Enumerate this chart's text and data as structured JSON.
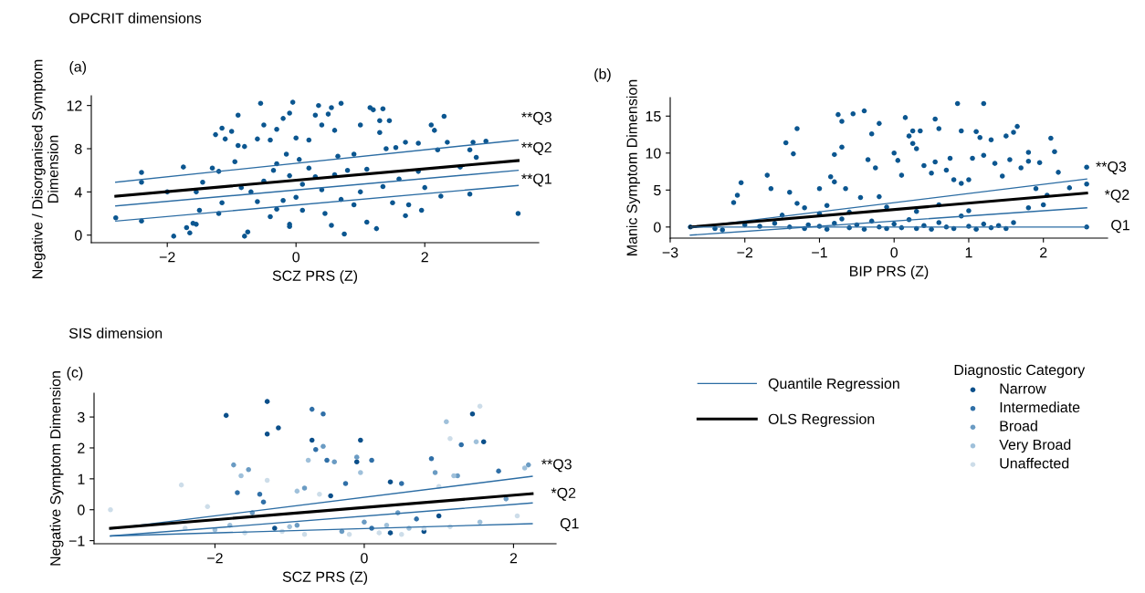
{
  "chart_data": [
    {
      "type": "scatter",
      "title": "(a)",
      "xlabel": "SCZ PRS (Z)",
      "ylabel": "Negative / Disorganised Symptom\nDimension",
      "xlim": [
        -3.18,
        3.77
      ],
      "ylim": [
        -0.7,
        12.9
      ],
      "xticks": [
        {
          "value": -2,
          "label": "−2"
        },
        0,
        2
      ],
      "yticks": [
        0,
        4,
        8,
        12
      ],
      "annotations": [
        "OPCRIT dimensions",
        "**Q3",
        "**Q2",
        "**Q1"
      ],
      "series": [
        {
          "marker": "circle",
          "color": "#0b5690",
          "x": [
            -2.8,
            -2.4,
            -2.4,
            -2.4,
            -2.0,
            -1.9,
            -1.75,
            -1.7,
            -1.6,
            -1.65,
            -1.55,
            -1.55,
            -1.5,
            -1.45,
            -1.3,
            -1.2,
            -1.25,
            -1.15,
            -1.1,
            -1.2,
            -1.15,
            -1.0,
            -0.9,
            -0.9,
            -0.8,
            -0.95,
            -0.85,
            -0.7,
            -0.8,
            -0.75,
            -0.6,
            -0.6,
            -0.55,
            -0.5,
            -0.4,
            -0.35,
            -0.3,
            -0.2,
            -0.1,
            -0.05,
            -0.15,
            -0.1,
            -0.2,
            -0.1,
            -0.1,
            -0.3,
            -0.4,
            0.0,
            0.05,
            0.1,
            0.1,
            0.2,
            0.3,
            0.35,
            0.4,
            0.5,
            0.55,
            0.6,
            0.65,
            0.7,
            0.75,
            0.7,
            0.55,
            0.3,
            0.4,
            0.45,
            0.8,
            0.9,
            1.0,
            1.1,
            1.15,
            1.2,
            1.3,
            1.3,
            1.35,
            1.45,
            1.35,
            1.25,
            1.1,
            1.4,
            1.5,
            1.55,
            1.7,
            1.7,
            1.75,
            1.9,
            1.9,
            1.95,
            2.0,
            2.1,
            2.15,
            2.2,
            2.25,
            2.3,
            2.35,
            2.55,
            2.7,
            2.7,
            2.75,
            2.8,
            2.95,
            3.45,
            0.2,
            0.6,
            -0.5,
            1.0,
            0.0,
            -0.3,
            0.9,
            1.6
          ],
          "values": [
            1.6,
            5.8,
            4.9,
            1.3,
            4.0,
            -0.1,
            6.3,
            0.7,
            1.1,
            0.2,
            1.0,
            4.0,
            2.3,
            4.9,
            6.2,
            5.9,
            9.3,
            9.9,
            8.9,
            2.0,
            3.0,
            9.6,
            11.1,
            8.3,
            8.2,
            6.8,
            4.4,
            4.0,
            -0.1,
            0.3,
            3.1,
            8.9,
            12.2,
            10.2,
            8.8,
            6.0,
            9.8,
            10.8,
            11.3,
            12.3,
            7.5,
            5.5,
            3.2,
            1.0,
            0.8,
            2.4,
            1.7,
            9.0,
            7.0,
            4.7,
            2.3,
            8.8,
            11.1,
            12.0,
            10.2,
            11.2,
            11.8,
            9.7,
            7.3,
            12.2,
            0.1,
            3.3,
            0.9,
            5.4,
            4.2,
            2.0,
            6.0,
            2.8,
            10.2,
            6.1,
            11.8,
            11.6,
            9.5,
            10.6,
            11.7,
            10.6,
            4.5,
            0.6,
            1.2,
            8.0,
            3.0,
            8.1,
            8.6,
            1.8,
            2.8,
            8.5,
            5.9,
            2.3,
            4.4,
            10.2,
            9.7,
            7.9,
            3.6,
            11.0,
            8.6,
            6.3,
            7.9,
            3.8,
            8.6,
            7.2,
            8.7,
            2.0,
            6.2,
            5.6,
            5.0,
            4.0,
            3.5,
            6.6,
            7.5,
            5.2
          ]
        },
        {
          "type": "line",
          "color": "#2b6ca3",
          "x": [
            -2.8,
            3.45
          ],
          "values": [
            4.9,
            8.8
          ]
        },
        {
          "type": "line",
          "color": "#000000",
          "x": [
            -2.8,
            3.45
          ],
          "values": [
            3.6,
            6.9
          ]
        },
        {
          "type": "line",
          "color": "#2b6ca3",
          "x": [
            -2.8,
            3.45
          ],
          "values": [
            2.7,
            6.0
          ]
        },
        {
          "type": "line",
          "color": "#2b6ca3",
          "x": [
            -2.8,
            3.45
          ],
          "values": [
            1.3,
            4.6
          ]
        }
      ]
    },
    {
      "type": "scatter",
      "title": "(b)",
      "xlabel": "BIP PRS (Z)",
      "ylabel": "Manic Symptom Dimension",
      "xlim": [
        -3,
        2.86
      ],
      "ylim": [
        -1.5,
        17.5
      ],
      "xticks": [
        {
          "value": -3,
          "label": "−3"
        },
        {
          "value": -2,
          "label": "−2"
        },
        {
          "value": -1,
          "label": "−1"
        },
        0,
        1,
        2
      ],
      "yticks": [
        0,
        5,
        10,
        15
      ],
      "annotations": [
        "**Q3",
        "*Q2",
        "Q1"
      ],
      "series": [
        {
          "marker": "circle",
          "color": "#0b5690",
          "x": [
            -2.73,
            -2.4,
            -2.3,
            -2.15,
            -2.1,
            -2.05,
            -2.0,
            -1.8,
            -1.7,
            -1.65,
            -1.6,
            -1.5,
            -1.45,
            -1.4,
            -1.35,
            -1.3,
            -1.3,
            -1.2,
            -1.15,
            -1.0,
            -1.0,
            -0.9,
            -0.85,
            -0.8,
            -0.8,
            -0.75,
            -0.7,
            -0.7,
            -0.65,
            -0.6,
            -0.55,
            -0.45,
            -0.4,
            -0.35,
            -0.3,
            -0.25,
            -0.2,
            -0.2,
            -0.1,
            0.0,
            0.05,
            0.1,
            0.15,
            0.2,
            0.25,
            0.3,
            0.25,
            0.35,
            0.4,
            0.5,
            0.55,
            0.6,
            0.55,
            0.7,
            0.75,
            0.8,
            0.85,
            0.9,
            0.9,
            1.0,
            1.05,
            1.1,
            1.15,
            1.2,
            1.2,
            1.3,
            1.35,
            1.45,
            1.5,
            1.55,
            1.6,
            1.65,
            1.7,
            1.8,
            1.8,
            1.9,
            1.95,
            2.05,
            2.1,
            2.15,
            2.2,
            2.35,
            2.58,
            2.58,
            2.58,
            -1.4,
            -1.2,
            -1.0,
            -0.9,
            -0.8,
            -0.6,
            -0.5,
            -0.4,
            -0.3,
            -0.2,
            -0.1,
            0.0,
            0.1,
            0.2,
            0.3,
            0.4,
            0.5,
            0.6,
            0.7,
            0.8,
            0.9,
            1.0,
            1.1,
            1.2,
            1.3,
            1.4,
            1.5,
            1.6,
            0.3,
            -0.7,
            0.6,
            1.0,
            1.8,
            2.0
          ],
          "values": [
            0.0,
            -0.2,
            -0.4,
            3.3,
            4.3,
            6.0,
            0.3,
            0.1,
            7.0,
            5.2,
            0.5,
            1.6,
            11.4,
            4.7,
            9.9,
            13.3,
            3.2,
            2.6,
            0.3,
            5.2,
            1.8,
            2.9,
            6.8,
            9.8,
            6.1,
            15.2,
            14.3,
            10.8,
            5.2,
            2.0,
            15.3,
            4.0,
            15.7,
            9.1,
            12.6,
            8.0,
            14.0,
            4.1,
            2.7,
            10.0,
            9.0,
            7.0,
            14.8,
            12.3,
            11.3,
            10.6,
            13.0,
            13.0,
            8.3,
            7.3,
            14.6,
            13.3,
            8.8,
            7.7,
            9.3,
            6.4,
            16.7,
            13.0,
            5.9,
            6.4,
            9.3,
            12.9,
            12.1,
            16.7,
            9.7,
            11.8,
            8.6,
            6.9,
            12.3,
            9.1,
            12.8,
            13.6,
            8.0,
            10.1,
            8.9,
            5.2,
            8.7,
            4.3,
            12.0,
            10.2,
            7.4,
            5.3,
            8.1,
            5.8,
            0.0,
            0.0,
            -0.2,
            0.1,
            -0.3,
            0.5,
            -0.1,
            0.3,
            -0.3,
            0.8,
            0.0,
            -0.2,
            0.4,
            -0.1,
            1.0,
            -0.2,
            0.2,
            -0.3,
            0.6,
            0.0,
            -0.2,
            1.5,
            0.1,
            -0.3,
            0.4,
            -0.1,
            0.2,
            -0.2,
            0.6,
            2.1,
            1.1,
            3.0,
            2.2,
            2.6,
            3.0
          ]
        },
        {
          "type": "line",
          "color": "#2b6ca3",
          "x": [
            -2.73,
            2.58
          ],
          "values": [
            -0.1,
            6.5
          ]
        },
        {
          "type": "line",
          "color": "#000000",
          "x": [
            -2.73,
            2.58
          ],
          "values": [
            0.0,
            4.6
          ]
        },
        {
          "type": "line",
          "color": "#2b6ca3",
          "x": [
            -2.73,
            2.58
          ],
          "values": [
            -1.1,
            2.6
          ]
        },
        {
          "type": "line",
          "color": "#2b6ca3",
          "x": [
            -2.73,
            2.58
          ],
          "values": [
            0.0,
            0.0
          ]
        }
      ]
    },
    {
      "type": "scatter",
      "title": "(c)",
      "xlabel": "SCZ PRS (Z)",
      "ylabel": "Negative Symptom Dimension",
      "legend": "right",
      "legend_title": "Diagnostic Category",
      "xlim": [
        -3.62,
        2.57
      ],
      "ylim": [
        -1.1,
        3.77
      ],
      "xticks": [
        {
          "value": -2,
          "label": "−2"
        },
        0,
        2
      ],
      "yticks": [
        {
          "value": -1,
          "label": "−1"
        },
        0,
        1,
        2,
        3
      ],
      "annotations": [
        "SIS dimension",
        "**Q3",
        "*Q2",
        "Q1"
      ],
      "series": [
        {
          "marker": "circle",
          "name": "Narrow",
          "color": "#0b4f8a",
          "x": [
            -1.85,
            -1.3,
            -1.3,
            -1.15,
            -0.7,
            -0.1,
            -0.05,
            1.45,
            1.6,
            0.35,
            -0.45,
            0.35,
            0.8,
            -1.2,
            1.0
          ],
          "values": [
            3.05,
            3.5,
            2.45,
            2.65,
            2.25,
            1.55,
            2.25,
            3.1,
            2.2,
            0.9,
            0.45,
            -0.75,
            -0.7,
            -0.6,
            -0.2
          ]
        },
        {
          "marker": "circle",
          "name": "Intermediate",
          "color": "#2f6fa7",
          "x": [
            -0.7,
            -0.55,
            -1.7,
            -1.4,
            -0.65,
            -0.5,
            0.1,
            -0.25,
            0.5,
            0.9,
            1.3,
            1.8,
            -1.35,
            0.1,
            0.7
          ],
          "values": [
            3.25,
            3.1,
            0.55,
            0.5,
            1.95,
            1.6,
            1.6,
            0.85,
            0.85,
            1.65,
            2.1,
            1.25,
            0.25,
            -0.6,
            -0.3
          ]
        },
        {
          "marker": "circle",
          "name": "Broad",
          "color": "#6a9bc3",
          "x": [
            -1.75,
            -1.55,
            -0.8,
            -0.55,
            -0.4,
            -0.1,
            0.95,
            1.25,
            2.2,
            -1.5,
            -0.9,
            0.45,
            -0.3,
            0.0,
            1.9
          ],
          "values": [
            1.45,
            1.3,
            0.7,
            2.05,
            1.55,
            1.7,
            1.2,
            1.1,
            1.45,
            -0.1,
            -0.5,
            -0.1,
            -0.7,
            -0.4,
            0.35
          ]
        },
        {
          "marker": "circle",
          "name": "Very Broad",
          "color": "#9fc0da",
          "x": [
            -1.65,
            -0.75,
            -0.05,
            1.1,
            1.5,
            1.2,
            -0.9,
            -2.0,
            -1.8,
            -1.0,
            0.3,
            0.6,
            1.55,
            2.15
          ],
          "values": [
            1.1,
            1.6,
            1.2,
            2.85,
            2.2,
            1.1,
            0.6,
            -0.65,
            -0.5,
            -0.55,
            -0.5,
            -0.6,
            -0.4,
            1.35
          ]
        },
        {
          "marker": "circle",
          "name": "Unaffected",
          "color": "#cddde9",
          "x": [
            -3.4,
            -2.45,
            -2.1,
            -1.3,
            -0.6,
            1.15,
            1.55,
            1.0,
            2.05,
            -2.4,
            -1.6,
            -0.8,
            -0.2,
            0.2,
            0.5,
            1.15,
            -1.1,
            0.8
          ],
          "values": [
            0.0,
            0.8,
            0.1,
            0.95,
            0.5,
            2.3,
            3.35,
            0.75,
            -0.2,
            -0.6,
            -0.75,
            -0.8,
            -0.8,
            -0.75,
            -0.8,
            -0.55,
            -0.7,
            -0.6
          ]
        },
        {
          "type": "line",
          "name": "Quantile Regression",
          "color": "#2b6ca3",
          "x": [
            -3.4,
            2.25
          ],
          "values": [
            -0.62,
            1.08
          ]
        },
        {
          "type": "line",
          "name": "OLS Regression",
          "color": "#000000",
          "x": [
            -3.4,
            2.25
          ],
          "values": [
            -0.6,
            0.52
          ]
        },
        {
          "type": "line",
          "color": "#2b6ca3",
          "x": [
            -3.4,
            2.25
          ],
          "values": [
            -0.85,
            0.22
          ]
        },
        {
          "type": "line",
          "color": "#2b6ca3",
          "x": [
            -3.4,
            2.25
          ],
          "values": [
            -0.85,
            -0.45
          ]
        }
      ]
    }
  ]
}
